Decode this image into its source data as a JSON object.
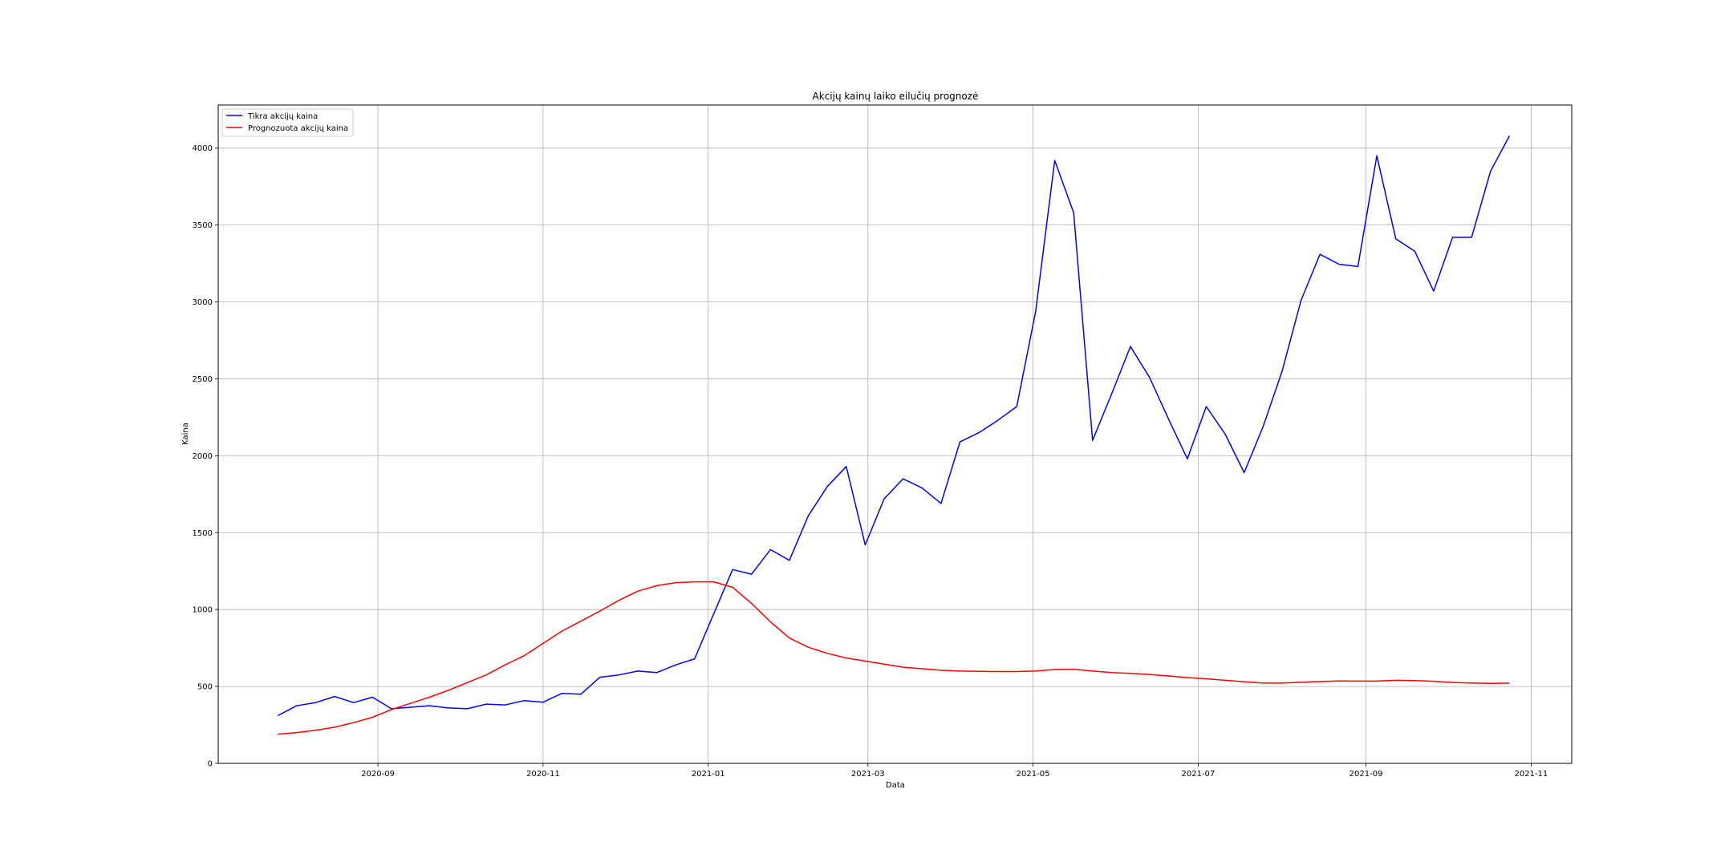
{
  "chart_data": {
    "type": "line",
    "title": "Akcijų kainų laiko eilučių prognozė",
    "xlabel": "Data",
    "ylabel": "Kaina",
    "xlim": [
      "2020-07-04",
      "2021-11-16"
    ],
    "ylim": [
      0,
      4280
    ],
    "x_ticks": [
      {
        "date": "2020-09-01",
        "label": "2020-09"
      },
      {
        "date": "2020-11-01",
        "label": "2020-11"
      },
      {
        "date": "2021-01-01",
        "label": "2021-01"
      },
      {
        "date": "2021-03-01",
        "label": "2021-03"
      },
      {
        "date": "2021-05-01",
        "label": "2021-05"
      },
      {
        "date": "2021-07-01",
        "label": "2021-07"
      },
      {
        "date": "2021-09-01",
        "label": "2021-09"
      },
      {
        "date": "2021-11-01",
        "label": "2021-11"
      }
    ],
    "y_ticks": [
      0,
      500,
      1000,
      1500,
      2000,
      2500,
      3000,
      3500,
      4000
    ],
    "grid": true,
    "legend_position": "top-left",
    "x": [
      "2020-07-26",
      "2020-08-02",
      "2020-08-09",
      "2020-08-16",
      "2020-08-23",
      "2020-08-30",
      "2020-09-06",
      "2020-09-13",
      "2020-09-20",
      "2020-09-27",
      "2020-10-04",
      "2020-10-11",
      "2020-10-18",
      "2020-10-25",
      "2020-11-01",
      "2020-11-08",
      "2020-11-15",
      "2020-11-22",
      "2020-11-29",
      "2020-12-06",
      "2020-12-13",
      "2020-12-20",
      "2020-12-27",
      "2021-01-03",
      "2021-01-10",
      "2021-01-17",
      "2021-01-24",
      "2021-01-31",
      "2021-02-07",
      "2021-02-14",
      "2021-02-21",
      "2021-02-28",
      "2021-03-07",
      "2021-03-14",
      "2021-03-21",
      "2021-03-28",
      "2021-04-04",
      "2021-04-11",
      "2021-04-18",
      "2021-04-25",
      "2021-05-02",
      "2021-05-09",
      "2021-05-16",
      "2021-05-23",
      "2021-05-30",
      "2021-06-06",
      "2021-06-13",
      "2021-06-20",
      "2021-06-27",
      "2021-07-04",
      "2021-07-11",
      "2021-07-18",
      "2021-07-25",
      "2021-08-01",
      "2021-08-08",
      "2021-08-15",
      "2021-08-22",
      "2021-08-29",
      "2021-09-05",
      "2021-09-12",
      "2021-09-19",
      "2021-09-26",
      "2021-10-03",
      "2021-10-10",
      "2021-10-17",
      "2021-10-24"
    ],
    "series": [
      {
        "name": "Tikra akcijų kaina",
        "color": "#0000ff",
        "values": [
          310,
          375,
          395,
          435,
          395,
          430,
          355,
          365,
          375,
          360,
          355,
          385,
          380,
          408,
          398,
          455,
          450,
          560,
          575,
          600,
          590,
          640,
          680,
          970,
          1260,
          1230,
          1390,
          1320,
          1610,
          1800,
          1930,
          1420,
          1720,
          1850,
          1790,
          1690,
          2090,
          2150,
          2230,
          2320,
          2940,
          3920,
          3580,
          2100,
          2400,
          2710,
          2510,
          2240,
          1980,
          2320,
          2140,
          1890,
          2190,
          2550,
          3010,
          3310,
          3245,
          3230,
          3950,
          3410,
          3330,
          3070,
          3420,
          3420,
          3850,
          4080
        ]
      },
      {
        "name": "Prognozuota akcijų kaina",
        "color": "#ff0000",
        "values": [
          190,
          200,
          215,
          235,
          265,
          300,
          350,
          390,
          430,
          475,
          525,
          575,
          640,
          700,
          780,
          860,
          925,
          990,
          1060,
          1120,
          1155,
          1175,
          1180,
          1180,
          1145,
          1040,
          920,
          815,
          755,
          715,
          685,
          665,
          645,
          625,
          615,
          605,
          600,
          598,
          597,
          597,
          600,
          610,
          612,
          600,
          590,
          585,
          578,
          568,
          558,
          550,
          540,
          530,
          522,
          522,
          527,
          532,
          536,
          535,
          535,
          540,
          538,
          534,
          526,
          522,
          520,
          522
        ]
      }
    ]
  }
}
